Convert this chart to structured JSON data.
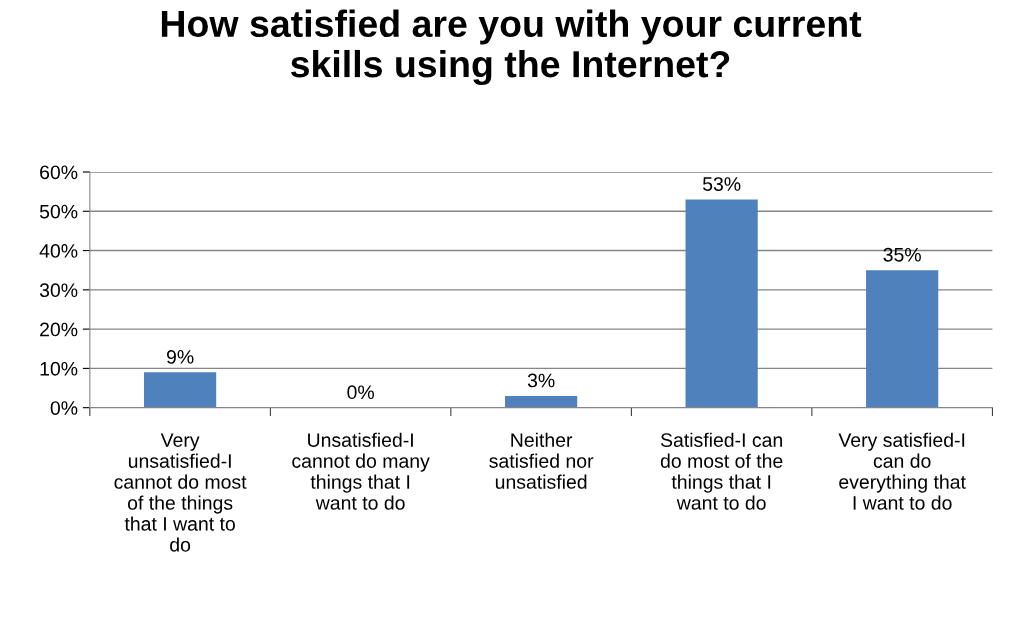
{
  "chart_data": {
    "type": "bar",
    "title": "How satisfied are you with your current skills using the Internet?",
    "categories": [
      "Very unsatisfied-I cannot do most of the things that I want to do",
      "Unsatisfied-I cannot do many things that I want to do",
      "Neither satisfied nor unsatisfied",
      "Satisfied-I can do most of the things that I want to do",
      "Very satisfied-I can do everything that I want to do"
    ],
    "values": [
      9,
      0,
      3,
      53,
      35
    ],
    "value_labels": [
      "9%",
      "0%",
      "3%",
      "53%",
      "35%"
    ],
    "color": "#4f81bd",
    "ylim": [
      0,
      60
    ],
    "yticks": [
      {
        "value": 0,
        "label": "0%"
      },
      {
        "value": 10,
        "label": "10%"
      },
      {
        "value": 20,
        "label": "20%"
      },
      {
        "value": 30,
        "label": "30%"
      },
      {
        "value": 40,
        "label": "40%"
      },
      {
        "value": 50,
        "label": "50%"
      },
      {
        "value": 60,
        "label": "60%"
      }
    ],
    "grid": "y",
    "legend": false
  }
}
